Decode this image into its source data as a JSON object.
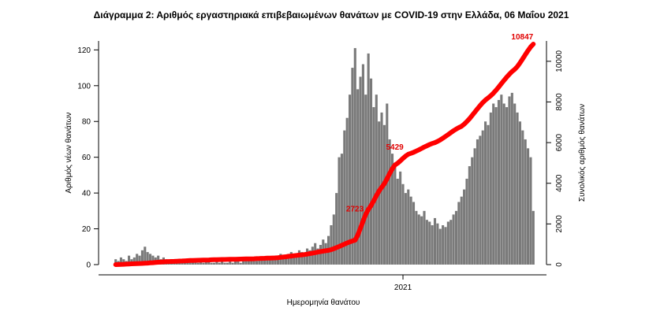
{
  "chart_data": {
    "type": "bar",
    "title": "Διάγραμμα 2: Αριθμός εργαστηριακά επιβεβαιωμένων θανάτων με COVID-19 στην Ελλάδα, 06 Μαΐου 2021",
    "xlabel": "Ημερομηνία θανάτου",
    "ylabel_left": "Αριθμός νέων θανάτων",
    "ylabel_right": "Συνολικός αριθμός θανάτων",
    "x_ticks": [
      "2021"
    ],
    "y_left_ticks": [
      0,
      20,
      40,
      60,
      80,
      100,
      120
    ],
    "y_left_range": [
      0,
      125
    ],
    "y_right_ticks": [
      0,
      2000,
      4000,
      6000,
      8000,
      10000
    ],
    "y_right_range": [
      0,
      11000
    ],
    "grid": false,
    "colors": {
      "bars": "#7a7a7a",
      "cumulative_line": "#ff0000",
      "annotations": "#e00000"
    },
    "series": [
      {
        "name": "",
        "kind": "bar",
        "axis": "left",
        "note": "daily new deaths, one bar per day",
        "values": [
          3,
          2,
          4,
          3,
          2,
          5,
          3,
          4,
          6,
          5,
          8,
          10,
          7,
          6,
          5,
          4,
          5,
          3,
          4,
          3,
          2,
          3,
          2,
          3,
          2,
          3,
          2,
          2,
          3,
          2,
          2,
          1,
          2,
          1,
          2,
          2,
          1,
          1,
          2,
          1,
          2,
          1,
          1,
          2,
          1,
          2,
          2,
          1,
          2,
          3,
          2,
          2,
          3,
          2,
          3,
          4,
          3,
          3,
          4,
          3,
          5,
          4,
          6,
          5,
          4,
          6,
          7,
          5,
          6,
          8,
          7,
          6,
          9,
          8,
          10,
          12,
          9,
          11,
          14,
          12,
          16,
          22,
          28,
          40,
          60,
          62,
          75,
          82,
          95,
          110,
          121,
          98,
          105,
          112,
          95,
          118,
          104,
          88,
          95,
          80,
          85,
          78,
          90,
          70,
          62,
          55,
          48,
          52,
          45,
          40,
          42,
          38,
          35,
          30,
          28,
          27,
          30,
          25,
          24,
          22,
          26,
          23,
          20,
          22,
          21,
          24,
          25,
          28,
          30,
          35,
          38,
          42,
          48,
          55,
          60,
          65,
          70,
          72,
          75,
          80,
          78,
          85,
          90,
          88,
          92,
          95,
          90,
          88,
          94,
          96,
          90,
          85,
          80,
          75,
          70,
          65,
          60,
          30
        ],
        "value_note": "values estimated from bar heights; peak labels 121, 114"
      },
      {
        "name": "",
        "kind": "line",
        "axis": "right",
        "note": "cumulative deaths",
        "x_index": [
          0,
          10,
          20,
          30,
          40,
          50,
          60,
          70,
          80,
          90,
          95,
          100,
          105,
          110,
          120,
          130,
          140,
          150,
          157
        ],
        "values": [
          0,
          60,
          150,
          210,
          250,
          280,
          330,
          480,
          700,
          1200,
          2723,
          3800,
          4900,
          5429,
          6000,
          6800,
          8200,
          9600,
          10847
        ]
      }
    ],
    "annotations": [
      {
        "text": "2723",
        "series": "cumulative",
        "x_index": 95,
        "value": 2723
      },
      {
        "text": "5429",
        "series": "cumulative",
        "x_index": 110,
        "value": 5429
      },
      {
        "text": "10847",
        "series": "cumulative",
        "x_index": 157,
        "value": 10847
      }
    ]
  }
}
